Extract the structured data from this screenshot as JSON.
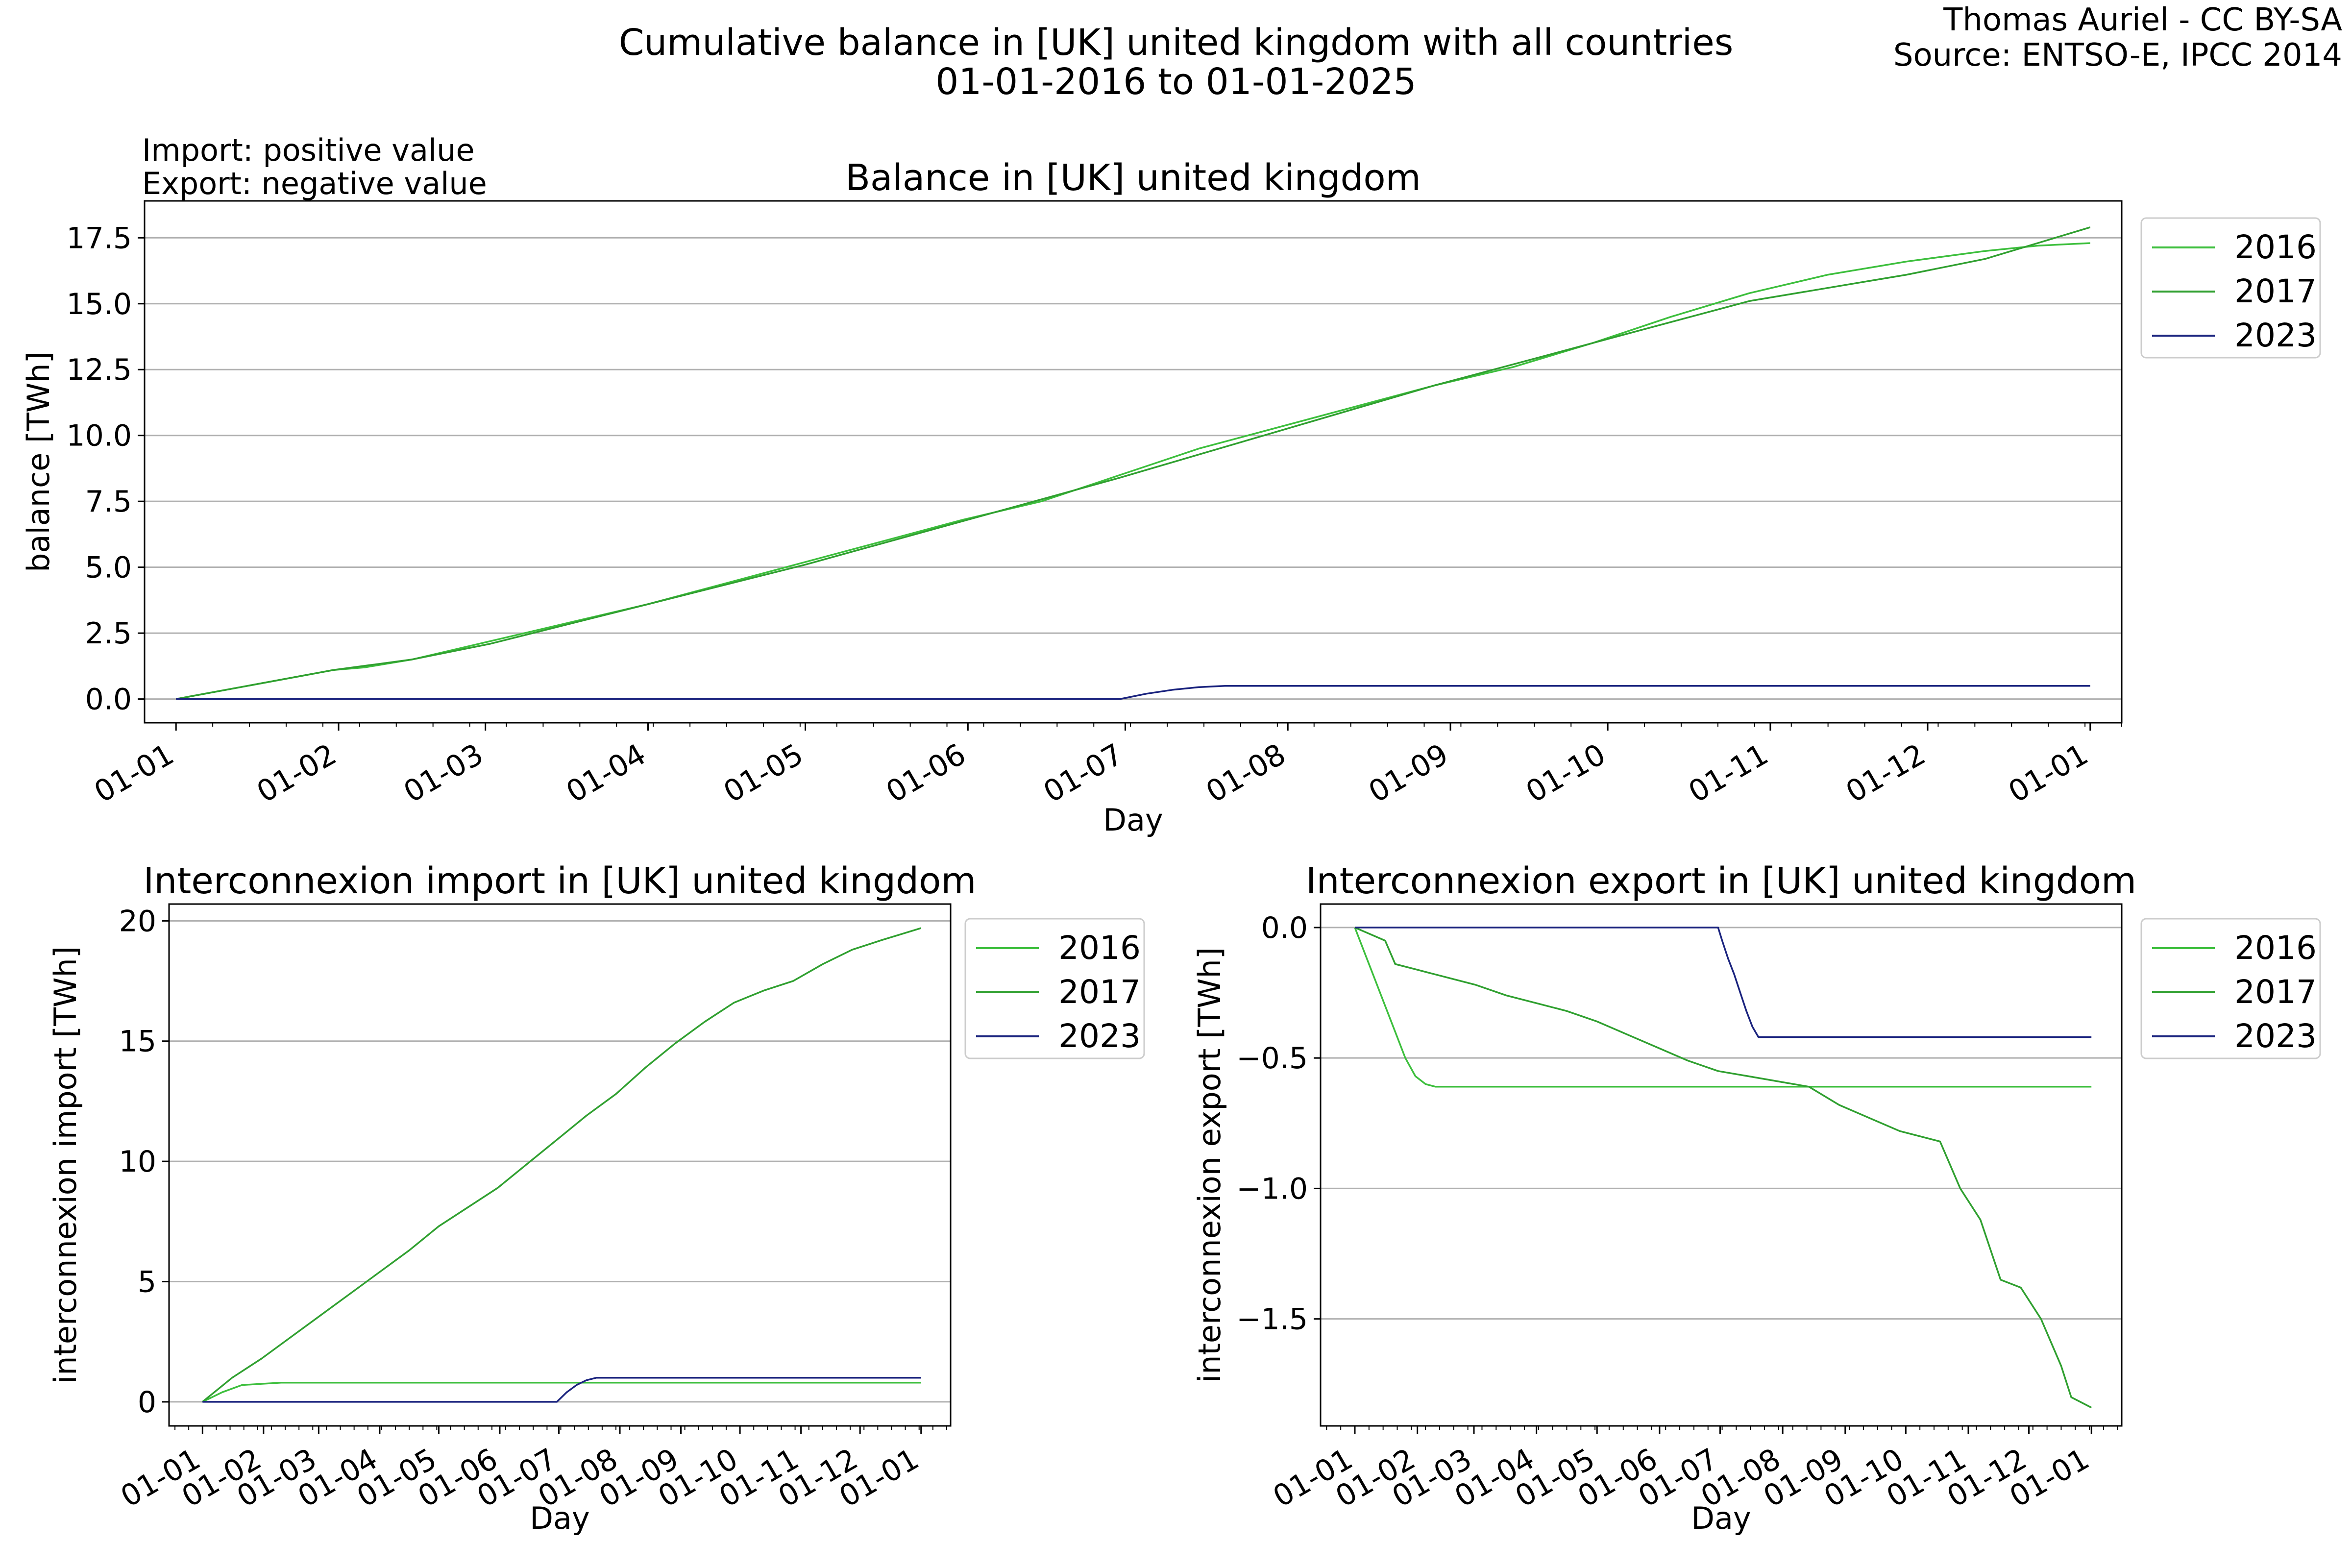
{
  "figure": {
    "title_line1": "Cumulative balance in [UK] united kingdom with all countries",
    "title_line2": "01-01-2016 to 01-01-2025",
    "credit_line1": "Thomas Auriel - CC BY-SA",
    "credit_line2": "Source: ENTSO-E, IPCC 2014",
    "note_line1": "Import: positive value",
    "note_line2": "Export: negative value"
  },
  "colors": {
    "c2016": "#3dbf3d",
    "c2017": "#30a030",
    "c2023": "#1a237e",
    "grid": "#b0b0b0"
  },
  "chart_data": [
    {
      "id": "balance",
      "type": "line",
      "title": "Balance in [UK] united kingdom",
      "xlabel": "Day",
      "ylabel": "balance [TWh]",
      "x_ticks": [
        "01-01",
        "01-02",
        "01-03",
        "01-04",
        "01-05",
        "01-06",
        "01-07",
        "01-08",
        "01-09",
        "01-10",
        "01-11",
        "01-12",
        "01-01"
      ],
      "y_ticks": [
        0.0,
        2.5,
        5.0,
        7.5,
        10.0,
        12.5,
        15.0,
        17.5
      ],
      "y_tick_labels": [
        "0.0",
        "2.5",
        "5.0",
        "7.5",
        "10.0",
        "12.5",
        "15.0",
        "17.5"
      ],
      "xlim_days": [
        -6,
        371
      ],
      "ylim": [
        -0.9,
        18.9
      ],
      "grid": "horizontal",
      "legend": "outside-right-top",
      "series": [
        {
          "name": "2016",
          "color_key": "c2016",
          "x": [
            0,
            15,
            30,
            36,
            45,
            60,
            75,
            90,
            105,
            120,
            135,
            150,
            165,
            180,
            195,
            210,
            225,
            240,
            255,
            270,
            285,
            300,
            315,
            330,
            345,
            355,
            365
          ],
          "y": [
            0.0,
            0.55,
            1.1,
            1.2,
            1.5,
            2.2,
            2.9,
            3.6,
            4.4,
            5.2,
            6.0,
            6.8,
            7.5,
            8.5,
            9.5,
            10.3,
            11.1,
            11.9,
            12.6,
            13.5,
            14.5,
            15.4,
            16.1,
            16.6,
            17.0,
            17.2,
            17.3
          ]
        },
        {
          "name": "2017",
          "color_key": "c2017",
          "x": [
            0,
            15,
            30,
            45,
            60,
            90,
            120,
            180,
            240,
            300,
            330,
            345,
            365
          ],
          "y": [
            0.0,
            0.55,
            1.1,
            1.5,
            2.1,
            3.6,
            5.1,
            8.4,
            11.9,
            15.1,
            16.1,
            16.7,
            17.9
          ]
        },
        {
          "name": "2023",
          "color_key": "c2023",
          "x": [
            0,
            30,
            60,
            90,
            120,
            150,
            180,
            185,
            190,
            195,
            200,
            205,
            210,
            240,
            270,
            300,
            330,
            365
          ],
          "y": [
            0.0,
            0.0,
            0.0,
            0.0,
            0.0,
            0.0,
            0.0,
            0.2,
            0.35,
            0.45,
            0.5,
            0.5,
            0.5,
            0.5,
            0.5,
            0.5,
            0.5,
            0.5
          ]
        }
      ]
    },
    {
      "id": "import",
      "type": "line",
      "title": "Interconnexion import in [UK] united kingdom",
      "xlabel": "Day",
      "ylabel": "interconnexion import [TWh]",
      "x_ticks": [
        "01-01",
        "01-02",
        "01-03",
        "01-04",
        "01-05",
        "01-06",
        "01-07",
        "01-08",
        "01-09",
        "01-10",
        "01-11",
        "01-12",
        "01-01"
      ],
      "y_ticks": [
        0,
        5,
        10,
        15,
        20
      ],
      "y_tick_labels": [
        "0",
        "5",
        "10",
        "15",
        "20"
      ],
      "xlim_days": [
        -17,
        380
      ],
      "ylim": [
        -1,
        20.7
      ],
      "grid": "horizontal",
      "legend": "outside-right-top",
      "series": [
        {
          "name": "2016",
          "color_key": "c2016",
          "x": [
            0,
            10,
            20,
            30,
            40,
            45,
            60,
            90,
            120,
            150,
            180,
            210,
            240,
            270,
            300,
            330,
            365
          ],
          "y": [
            0.0,
            0.4,
            0.7,
            0.75,
            0.8,
            0.8,
            0.8,
            0.8,
            0.8,
            0.8,
            0.8,
            0.8,
            0.8,
            0.8,
            0.8,
            0.8,
            0.8
          ]
        },
        {
          "name": "2017",
          "color_key": "c2017",
          "x": [
            0,
            15,
            30,
            45,
            60,
            75,
            90,
            105,
            120,
            135,
            150,
            165,
            180,
            195,
            210,
            225,
            240,
            255,
            270,
            285,
            300,
            315,
            330,
            345,
            365
          ],
          "y": [
            0.0,
            1.0,
            1.8,
            2.7,
            3.6,
            4.5,
            5.4,
            6.3,
            7.3,
            8.1,
            8.9,
            9.9,
            10.9,
            11.9,
            12.8,
            13.9,
            14.9,
            15.8,
            16.6,
            17.1,
            17.5,
            18.2,
            18.8,
            19.2,
            19.7
          ]
        },
        {
          "name": "2023",
          "color_key": "c2023",
          "x": [
            0,
            30,
            60,
            90,
            120,
            150,
            180,
            185,
            190,
            195,
            200,
            210,
            240,
            270,
            300,
            330,
            365
          ],
          "y": [
            0.0,
            0.0,
            0.0,
            0.0,
            0.0,
            0.0,
            0.0,
            0.4,
            0.7,
            0.9,
            1.0,
            1.0,
            1.0,
            1.0,
            1.0,
            1.0,
            1.0
          ]
        }
      ]
    },
    {
      "id": "export",
      "type": "line",
      "title": "Interconnexion export in [UK] united kingdom",
      "xlabel": "Day",
      "ylabel": "interconnexion export [TWh]",
      "x_ticks": [
        "01-01",
        "01-02",
        "01-03",
        "01-04",
        "01-05",
        "01-06",
        "01-07",
        "01-08",
        "01-09",
        "01-10",
        "01-11",
        "01-12",
        "01-01"
      ],
      "y_ticks": [
        0.0,
        -0.5,
        -1.0,
        -1.5
      ],
      "y_tick_labels": [
        "0.0",
        "−0.5",
        "−1.0",
        "−1.5"
      ],
      "xlim_days": [
        -17,
        380
      ],
      "ylim": [
        -1.91,
        0.09
      ],
      "grid": "horizontal",
      "legend": "outside-right-top",
      "series": [
        {
          "name": "2016",
          "color_key": "c2016",
          "x": [
            0,
            5,
            10,
            15,
            20,
            25,
            30,
            35,
            40,
            45,
            60,
            90,
            120,
            150,
            180,
            210,
            240,
            270,
            300,
            330,
            365
          ],
          "y": [
            0.0,
            -0.1,
            -0.2,
            -0.3,
            -0.4,
            -0.5,
            -0.57,
            -0.6,
            -0.61,
            -0.61,
            -0.61,
            -0.61,
            -0.61,
            -0.61,
            -0.61,
            -0.61,
            -0.61,
            -0.61,
            -0.61,
            -0.61,
            -0.61
          ]
        },
        {
          "name": "2017",
          "color_key": "c2017",
          "x": [
            0,
            15,
            20,
            30,
            45,
            60,
            75,
            90,
            105,
            120,
            135,
            150,
            165,
            180,
            195,
            210,
            225,
            240,
            255,
            270,
            280,
            290,
            300,
            310,
            320,
            330,
            340,
            350,
            355,
            360,
            365
          ],
          "y": [
            0.0,
            -0.05,
            -0.14,
            -0.16,
            -0.19,
            -0.22,
            -0.26,
            -0.29,
            -0.32,
            -0.36,
            -0.41,
            -0.46,
            -0.51,
            -0.55,
            -0.57,
            -0.59,
            -0.61,
            -0.68,
            -0.73,
            -0.78,
            -0.8,
            -0.82,
            -1.0,
            -1.12,
            -1.35,
            -1.38,
            -1.5,
            -1.68,
            -1.8,
            -1.82,
            -1.84
          ]
        },
        {
          "name": "2023",
          "color_key": "c2023",
          "x": [
            0,
            30,
            60,
            90,
            120,
            150,
            180,
            182,
            185,
            188,
            191,
            194,
            197,
            200,
            210,
            240,
            270,
            300,
            330,
            365
          ],
          "y": [
            0.0,
            0.0,
            0.0,
            0.0,
            0.0,
            0.0,
            0.0,
            -0.05,
            -0.12,
            -0.18,
            -0.25,
            -0.32,
            -0.38,
            -0.42,
            -0.42,
            -0.42,
            -0.42,
            -0.42,
            -0.42,
            -0.42
          ]
        }
      ]
    }
  ]
}
